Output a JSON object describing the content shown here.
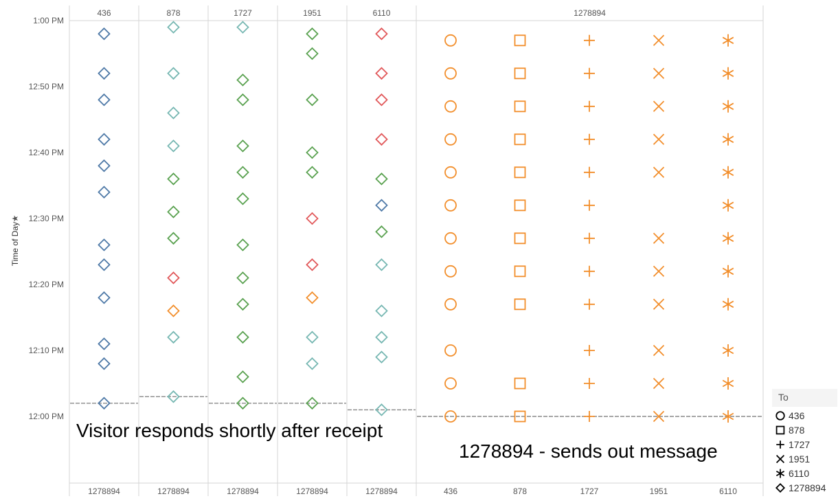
{
  "chart_data": {
    "type": "scatter",
    "ylabel": "Time of Day",
    "ylim": [
      "11:50 AM",
      "1:01 PM"
    ],
    "y_ticks": [
      "12:00 PM",
      "12:10 PM",
      "12:20 PM",
      "12:30 PM",
      "12:40 PM",
      "12:50 PM",
      "1:00 PM"
    ],
    "colors": {
      "blue": "#4e79a7",
      "teal": "#76b7b2",
      "green": "#59a14f",
      "red": "#e15759",
      "orange": "#f28e2b"
    },
    "legend": {
      "title": "To",
      "position": "bottom-right",
      "items": [
        {
          "label": "436",
          "shape": "circle"
        },
        {
          "label": "878",
          "shape": "square"
        },
        {
          "label": "1727",
          "shape": "plus"
        },
        {
          "label": "1951",
          "shape": "cross"
        },
        {
          "label": "6110",
          "shape": "asterisk"
        },
        {
          "label": "1278894",
          "shape": "diamond"
        }
      ]
    },
    "panels": [
      {
        "from": "436",
        "to": "1278894",
        "reference_line": "12:02 PM",
        "points": [
          {
            "t": "12:58 PM",
            "color": "blue"
          },
          {
            "t": "12:52 PM",
            "color": "blue"
          },
          {
            "t": "12:48 PM",
            "color": "blue"
          },
          {
            "t": "12:42 PM",
            "color": "blue"
          },
          {
            "t": "12:38 PM",
            "color": "blue"
          },
          {
            "t": "12:34 PM",
            "color": "blue"
          },
          {
            "t": "12:26 PM",
            "color": "blue"
          },
          {
            "t": "12:23 PM",
            "color": "blue"
          },
          {
            "t": "12:18 PM",
            "color": "blue"
          },
          {
            "t": "12:11 PM",
            "color": "blue"
          },
          {
            "t": "12:08 PM",
            "color": "blue"
          },
          {
            "t": "12:02 PM",
            "color": "blue"
          }
        ]
      },
      {
        "from": "878",
        "to": "1278894",
        "reference_line": "12:03 PM",
        "points": [
          {
            "t": "12:59 PM",
            "color": "teal"
          },
          {
            "t": "12:52 PM",
            "color": "teal"
          },
          {
            "t": "12:46 PM",
            "color": "teal"
          },
          {
            "t": "12:41 PM",
            "color": "teal"
          },
          {
            "t": "12:36 PM",
            "color": "green"
          },
          {
            "t": "12:31 PM",
            "color": "green"
          },
          {
            "t": "12:27 PM",
            "color": "green"
          },
          {
            "t": "12:21 PM",
            "color": "red"
          },
          {
            "t": "12:16 PM",
            "color": "orange"
          },
          {
            "t": "12:12 PM",
            "color": "teal"
          },
          {
            "t": "12:03 PM",
            "color": "teal"
          }
        ]
      },
      {
        "from": "1727",
        "to": "1278894",
        "reference_line": "12:02 PM",
        "points": [
          {
            "t": "12:59 PM",
            "color": "teal"
          },
          {
            "t": "12:51 PM",
            "color": "green"
          },
          {
            "t": "12:48 PM",
            "color": "green"
          },
          {
            "t": "12:41 PM",
            "color": "green"
          },
          {
            "t": "12:37 PM",
            "color": "green"
          },
          {
            "t": "12:33 PM",
            "color": "green"
          },
          {
            "t": "12:26 PM",
            "color": "green"
          },
          {
            "t": "12:21 PM",
            "color": "green"
          },
          {
            "t": "12:17 PM",
            "color": "green"
          },
          {
            "t": "12:12 PM",
            "color": "green"
          },
          {
            "t": "12:06 PM",
            "color": "green"
          },
          {
            "t": "12:02 PM",
            "color": "green"
          }
        ]
      },
      {
        "from": "1951",
        "to": "1278894",
        "reference_line": "12:02 PM",
        "points": [
          {
            "t": "12:58 PM",
            "color": "green"
          },
          {
            "t": "12:55 PM",
            "color": "green"
          },
          {
            "t": "12:48 PM",
            "color": "green"
          },
          {
            "t": "12:40 PM",
            "color": "green"
          },
          {
            "t": "12:37 PM",
            "color": "green"
          },
          {
            "t": "12:30 PM",
            "color": "red"
          },
          {
            "t": "12:23 PM",
            "color": "red"
          },
          {
            "t": "12:18 PM",
            "color": "orange"
          },
          {
            "t": "12:12 PM",
            "color": "teal"
          },
          {
            "t": "12:08 PM",
            "color": "teal"
          },
          {
            "t": "12:02 PM",
            "color": "green"
          }
        ]
      },
      {
        "from": "6110",
        "to": "1278894",
        "reference_line": "12:01 PM",
        "points": [
          {
            "t": "12:58 PM",
            "color": "red"
          },
          {
            "t": "12:52 PM",
            "color": "red"
          },
          {
            "t": "12:48 PM",
            "color": "red"
          },
          {
            "t": "12:42 PM",
            "color": "red"
          },
          {
            "t": "12:36 PM",
            "color": "green"
          },
          {
            "t": "12:32 PM",
            "color": "blue"
          },
          {
            "t": "12:28 PM",
            "color": "green"
          },
          {
            "t": "12:23 PM",
            "color": "teal"
          },
          {
            "t": "12:16 PM",
            "color": "teal"
          },
          {
            "t": "12:12 PM",
            "color": "teal"
          },
          {
            "t": "12:09 PM",
            "color": "teal"
          },
          {
            "t": "12:01 PM",
            "color": "teal"
          }
        ]
      },
      {
        "from": "1278894",
        "to": [
          "436",
          "878",
          "1727",
          "1951",
          "6110"
        ],
        "reference_line": "12:00 PM",
        "color": "orange",
        "times": [
          "12:57 PM",
          "12:52 PM",
          "12:47 PM",
          "12:42 PM",
          "12:37 PM",
          "12:32 PM",
          "12:27 PM",
          "12:22 PM",
          "12:17 PM",
          "12:10 PM",
          "12:05 PM",
          "12:00 PM"
        ],
        "missing": {
          "878": [
            "12:10 PM"
          ],
          "1951": [
            "12:32 PM"
          ]
        }
      }
    ],
    "annotations": [
      "Visitor responds shortly after receipt",
      "1278894 - sends out message"
    ]
  }
}
